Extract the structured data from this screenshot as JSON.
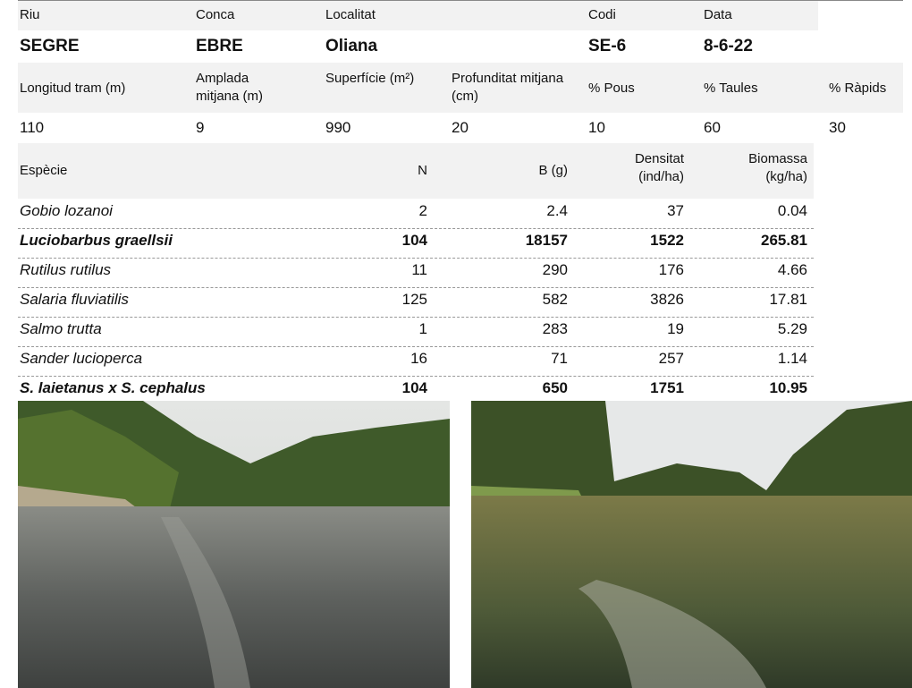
{
  "site": {
    "headers": [
      "Riu",
      "Conca",
      "Localitat",
      "Codi",
      "Data"
    ],
    "values": [
      "SEGRE",
      "EBRE",
      "Oliana",
      "SE-6",
      "8-6-22"
    ]
  },
  "reach": {
    "headers": [
      "Longitud tram (m)",
      "Amplada mitjana (m)",
      "Superfície (m²)",
      "Profunditat mitjana (cm)",
      "% Pous",
      "% Taules",
      "% Ràpids"
    ],
    "values": [
      110,
      9,
      990,
      20,
      10,
      60,
      30
    ]
  },
  "species_table": {
    "headers": [
      "Espècie",
      "N",
      "B (g)",
      "Densitat (ind/ha)",
      "Biomassa (kg/ha)"
    ],
    "rows": [
      {
        "species": "Gobio lozanoi",
        "n": 2,
        "b_g": 2.4,
        "density": 37,
        "biomass": 0.04,
        "bold": false
      },
      {
        "species": "Luciobarbus graellsii",
        "n": 104,
        "b_g": 18157,
        "density": 1522,
        "biomass": 265.81,
        "bold": true
      },
      {
        "species": "Rutilus rutilus",
        "n": 11,
        "b_g": 290,
        "density": 176,
        "biomass": 4.66,
        "bold": false
      },
      {
        "species": "Salaria fluviatilis",
        "n": 125,
        "b_g": 582,
        "density": 3826,
        "biomass": 17.81,
        "bold": false
      },
      {
        "species": "Salmo trutta",
        "n": 1,
        "b_g": 283,
        "density": 19,
        "biomass": 5.29,
        "bold": false
      },
      {
        "species": "Sander lucioperca",
        "n": 16,
        "b_g": 71,
        "density": 257,
        "biomass": 1.14,
        "bold": false
      },
      {
        "species": "S. laietanus x S. cephalus",
        "n": 104,
        "b_g": 650,
        "density": 1751,
        "biomass": 10.95,
        "bold": true
      }
    ]
  }
}
